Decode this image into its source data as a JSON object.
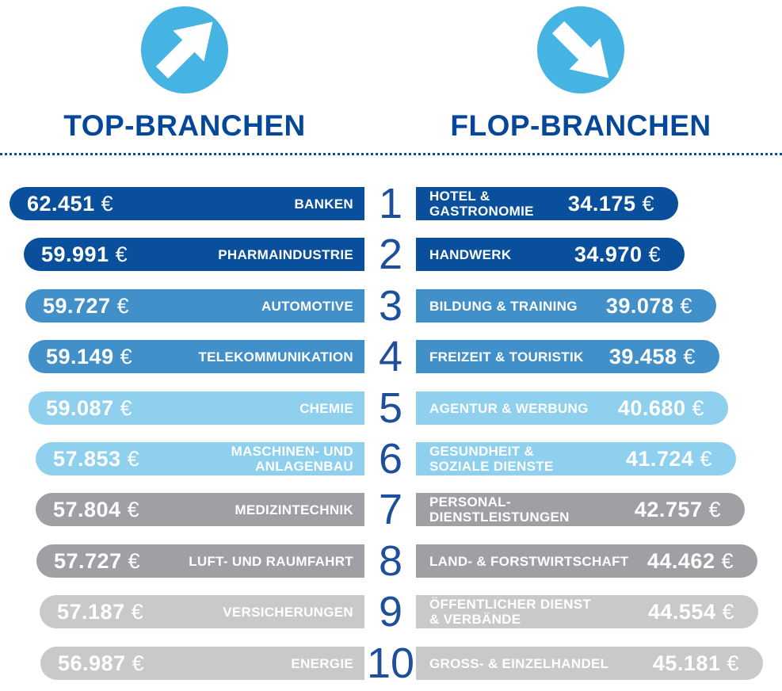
{
  "header": {
    "left": {
      "title": "TOP-BRANCHEN",
      "icon": "arrow-up-right-icon"
    },
    "right": {
      "title": "FLOP-BRANCHEN",
      "icon": "arrow-down-right-icon"
    }
  },
  "colors": {
    "dark_blue": "#0a4f9c",
    "medium_blue": "#4190c9",
    "light_blue": "#8ed0ee",
    "medium_gray": "#9ea0a3",
    "light_gray": "#c8c9cb",
    "title_blue": "#05489a",
    "rank_blue": "#1d4f9b",
    "icon_circle_blue": "#45b4e2",
    "icon_arrow_white": "#ffffff",
    "divider_blue": "#0a4f9e",
    "bar_text_white": "#ffffff"
  },
  "tier_colors": [
    "dark_blue",
    "dark_blue",
    "medium_blue",
    "medium_blue",
    "light_blue",
    "light_blue",
    "medium_gray",
    "medium_gray",
    "light_gray",
    "light_gray"
  ],
  "rows": [
    {
      "rank": "1",
      "top": {
        "label_lines": [
          "BANKEN"
        ],
        "value": "62.451",
        "currency": "€",
        "amount": 62451
      },
      "flop": {
        "label_lines": [
          "HOTEL &",
          "GASTRONOMIE"
        ],
        "value": "34.175",
        "currency": "€",
        "amount": 34175
      }
    },
    {
      "rank": "2",
      "top": {
        "label_lines": [
          "PHARMAINDUSTRIE"
        ],
        "value": "59.991",
        "currency": "€",
        "amount": 59991
      },
      "flop": {
        "label_lines": [
          "HANDWERK"
        ],
        "value": "34.970",
        "currency": "€",
        "amount": 34970
      }
    },
    {
      "rank": "3",
      "top": {
        "label_lines": [
          "AUTOMOTIVE"
        ],
        "value": "59.727",
        "currency": "€",
        "amount": 59727
      },
      "flop": {
        "label_lines": [
          "BILDUNG & TRAINING"
        ],
        "value": "39.078",
        "currency": "€",
        "amount": 39078
      }
    },
    {
      "rank": "4",
      "top": {
        "label_lines": [
          "TELEKOMMUNIKATION"
        ],
        "value": "59.149",
        "currency": "€",
        "amount": 59149
      },
      "flop": {
        "label_lines": [
          "FREIZEIT & TOURISTIK"
        ],
        "value": "39.458",
        "currency": "€",
        "amount": 39458
      }
    },
    {
      "rank": "5",
      "top": {
        "label_lines": [
          "CHEMIE"
        ],
        "value": "59.087",
        "currency": "€",
        "amount": 59087
      },
      "flop": {
        "label_lines": [
          "AGENTUR & WERBUNG"
        ],
        "value": "40.680",
        "currency": "€",
        "amount": 40680
      }
    },
    {
      "rank": "6",
      "top": {
        "label_lines": [
          "MASCHINEN- UND",
          "ANLAGENBAU"
        ],
        "value": "57.853",
        "currency": "€",
        "amount": 57853
      },
      "flop": {
        "label_lines": [
          "GESUNDHEIT &",
          "SOZIALE DIENSTE"
        ],
        "value": "41.724",
        "currency": "€",
        "amount": 41724
      }
    },
    {
      "rank": "7",
      "top": {
        "label_lines": [
          "MEDIZINTECHNIK"
        ],
        "value": "57.804",
        "currency": "€",
        "amount": 57804
      },
      "flop": {
        "label_lines": [
          "PERSONAL-",
          "DIENSTLEISTUNGEN"
        ],
        "value": "42.757",
        "currency": "€",
        "amount": 42757
      }
    },
    {
      "rank": "8",
      "top": {
        "label_lines": [
          "LUFT- UND RAUMFAHRT"
        ],
        "value": "57.727",
        "currency": "€",
        "amount": 57727
      },
      "flop": {
        "label_lines": [
          "LAND- & FORSTWIRTSCHAFT"
        ],
        "value": "44.462",
        "currency": "€",
        "amount": 44462
      }
    },
    {
      "rank": "9",
      "top": {
        "label_lines": [
          "VERSICHERUNGEN"
        ],
        "value": "57.187",
        "currency": "€",
        "amount": 57187
      },
      "flop": {
        "label_lines": [
          "ÖFFENTLICHER DIENST",
          "& VERBÄNDE"
        ],
        "value": "44.554",
        "currency": "€",
        "amount": 44554
      }
    },
    {
      "rank": "10",
      "top": {
        "label_lines": [
          "ENERGIE"
        ],
        "value": "56.987",
        "currency": "€",
        "amount": 56987
      },
      "flop": {
        "label_lines": [
          "GROSS- & EINZELHANDEL"
        ],
        "value": "45.181",
        "currency": "€",
        "amount": 45181
      }
    }
  ],
  "chart_data": {
    "type": "bar",
    "orientation": "horizontal",
    "unit": "€",
    "legend": false,
    "charts": [
      {
        "name": "TOP-BRANCHEN",
        "categories": [
          "BANKEN",
          "PHARMAINDUSTRIE",
          "AUTOMOTIVE",
          "TELEKOMMUNIKATION",
          "CHEMIE",
          "MASCHINEN- UND ANLAGENBAU",
          "MEDIZINTECHNIK",
          "LUFT- UND RAUMFAHRT",
          "VERSICHERUNGEN",
          "ENERGIE"
        ],
        "values": [
          62451,
          59991,
          59727,
          59149,
          59087,
          57853,
          57804,
          57727,
          57187,
          56987
        ]
      },
      {
        "name": "FLOP-BRANCHEN",
        "categories": [
          "HOTEL & GASTRONOMIE",
          "HANDWERK",
          "BILDUNG & TRAINING",
          "FREIZEIT & TOURISTIK",
          "AGENTUR & WERBUNG",
          "GESUNDHEIT & SOZIALE DIENSTE",
          "PERSONAL-DIENSTLEISTUNGEN",
          "LAND- & FORSTWIRTSCHAFT",
          "ÖFFENTLICHER DIENST & VERBÄNDE",
          "GROSS- & EINZELHANDEL"
        ],
        "values": [
          34175,
          34970,
          39078,
          39458,
          40680,
          41724,
          42757,
          44462,
          44554,
          45181
        ]
      }
    ]
  }
}
